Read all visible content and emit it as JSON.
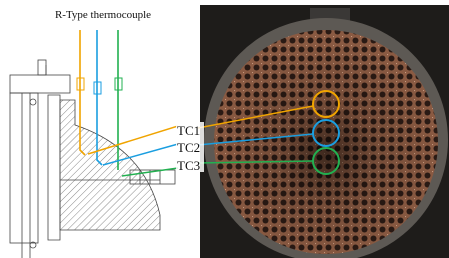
{
  "title": "R-Type thermocouple",
  "labels": [
    "TC1",
    "TC2",
    "TC3"
  ]
}
